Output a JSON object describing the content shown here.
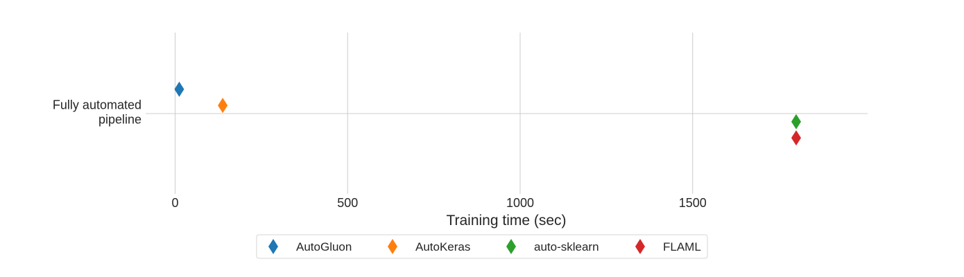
{
  "chart_data": {
    "type": "scatter",
    "title": "",
    "xlabel": "Training time (sec)",
    "ylabel": "",
    "categories": [
      "Fully automated pipeline"
    ],
    "category_lines": [
      "Fully automated",
      "pipeline"
    ],
    "xlim": [
      -90,
      2000
    ],
    "xticks": [
      0,
      500,
      1000,
      1500
    ],
    "grid": true,
    "legend_placement": "bottom-center",
    "marker": "diamond",
    "series": [
      {
        "name": "AutoGluon",
        "color": "#1f77b4",
        "x": 12,
        "offset": -0.3
      },
      {
        "name": "AutoKeras",
        "color": "#ff7f0e",
        "x": 138,
        "offset": -0.1
      },
      {
        "name": "auto-sklearn",
        "color": "#2ca02c",
        "x": 1800,
        "offset": 0.1
      },
      {
        "name": "FLAML",
        "color": "#d62728",
        "x": 1800,
        "offset": 0.3
      }
    ]
  }
}
